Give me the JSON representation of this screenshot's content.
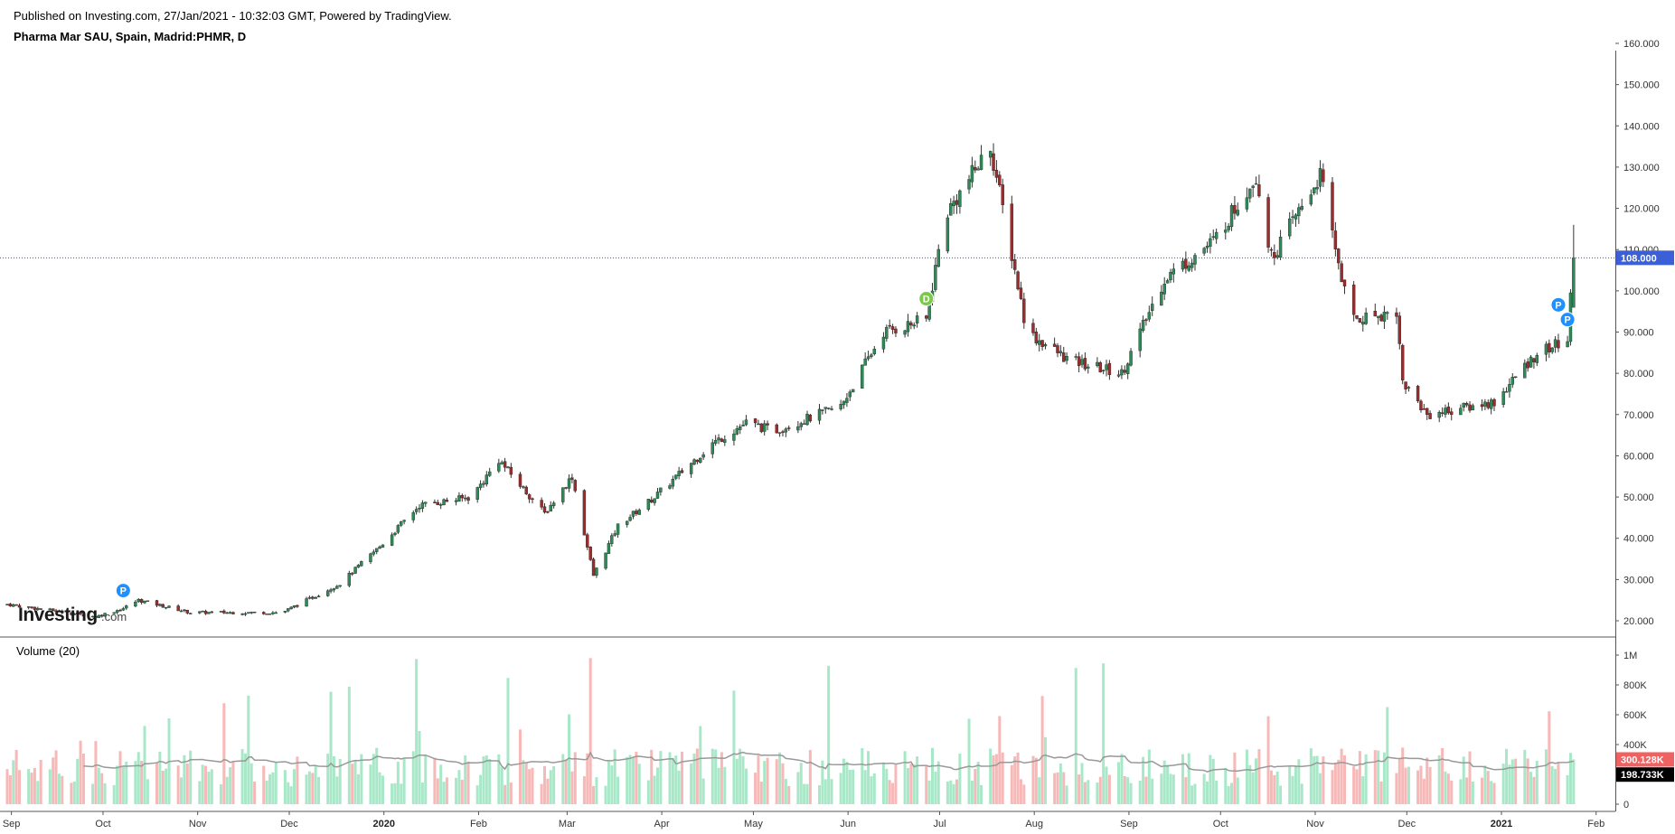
{
  "header": {
    "published": "Published on Investing.com, 27/Jan/2021 - 10:32:03 GMT, Powered by TradingView.",
    "symbol": "Pharma Mar SAU, Spain, Madrid:PHMR, D"
  },
  "logo": {
    "text_main": "Investing",
    "text_suffix": ".com"
  },
  "volume_panel": {
    "label": "Volume (20)"
  },
  "markers": [
    {
      "letter": "P",
      "date": "2019-10-10",
      "color": "#1e90ff"
    },
    {
      "letter": "D",
      "date": "2020-06-29",
      "color": "#7cc94a"
    },
    {
      "letter": "P",
      "date": "2021-01-22",
      "color": "#1e90ff"
    },
    {
      "letter": "P",
      "date": "2021-01-25",
      "color": "#1e90ff"
    }
  ],
  "colors": {
    "up": "#2e8b57",
    "down": "#9b2d2d",
    "volume_up": "#a8e8c8",
    "volume_down": "#f7b8b8",
    "volume_ma": "#999999",
    "last_price_line": "#3355cc",
    "last_price_tag": "#3b5fd6",
    "volume_tag_red": "#f06262",
    "volume_tag_black": "#000000"
  },
  "chart_data": [
    {
      "type": "candlestick",
      "title": "Pharma Mar SAU, Spain, Madrid:PHMR, D",
      "price_axis_ticks": [
        "20.000",
        "30.000",
        "40.000",
        "50.000",
        "60.000",
        "70.000",
        "80.000",
        "90.000",
        "100.000",
        "110.000",
        "120.000",
        "130.000",
        "140.000",
        "150.000",
        "160.000"
      ],
      "ylim": [
        20,
        160
      ],
      "x_axis_ticks": [
        "Sep",
        "Oct",
        "Nov",
        "Dec",
        "2020",
        "Feb",
        "Mar",
        "Apr",
        "May",
        "Jun",
        "Jul",
        "Aug",
        "Sep",
        "Oct",
        "Nov",
        "Dec",
        "2021",
        "Feb"
      ],
      "last_price": "108.000",
      "last_price_value": 108,
      "series_approx_close": [
        {
          "date": "2019-09-02",
          "close": 24
        },
        {
          "date": "2019-10-01",
          "close": 21
        },
        {
          "date": "2019-10-10",
          "close": 23
        },
        {
          "date": "2019-10-15",
          "close": 25
        },
        {
          "date": "2019-11-01",
          "close": 22
        },
        {
          "date": "2019-12-01",
          "close": 22
        },
        {
          "date": "2019-12-20",
          "close": 29
        },
        {
          "date": "2020-01-02",
          "close": 38
        },
        {
          "date": "2020-01-15",
          "close": 48
        },
        {
          "date": "2020-02-01",
          "close": 50
        },
        {
          "date": "2020-02-10",
          "close": 59
        },
        {
          "date": "2020-02-25",
          "close": 46
        },
        {
          "date": "2020-03-05",
          "close": 55
        },
        {
          "date": "2020-03-12",
          "close": 31
        },
        {
          "date": "2020-03-20",
          "close": 43
        },
        {
          "date": "2020-04-01",
          "close": 50
        },
        {
          "date": "2020-04-20",
          "close": 63
        },
        {
          "date": "2020-05-01",
          "close": 68
        },
        {
          "date": "2020-05-10",
          "close": 66
        },
        {
          "date": "2020-06-01",
          "close": 72
        },
        {
          "date": "2020-06-15",
          "close": 90
        },
        {
          "date": "2020-06-29",
          "close": 93
        },
        {
          "date": "2020-07-05",
          "close": 118
        },
        {
          "date": "2020-07-20",
          "close": 135
        },
        {
          "date": "2020-08-01",
          "close": 90
        },
        {
          "date": "2020-08-15",
          "close": 83
        },
        {
          "date": "2020-09-01",
          "close": 80
        },
        {
          "date": "2020-09-15",
          "close": 103
        },
        {
          "date": "2020-10-01",
          "close": 112
        },
        {
          "date": "2020-10-15",
          "close": 128
        },
        {
          "date": "2020-10-20",
          "close": 108
        },
        {
          "date": "2020-11-05",
          "close": 128
        },
        {
          "date": "2020-11-15",
          "close": 93
        },
        {
          "date": "2020-11-30",
          "close": 95
        },
        {
          "date": "2020-12-02",
          "close": 78
        },
        {
          "date": "2020-12-10",
          "close": 70
        },
        {
          "date": "2021-01-01",
          "close": 73
        },
        {
          "date": "2021-01-15",
          "close": 85
        },
        {
          "date": "2021-01-25",
          "close": 88
        },
        {
          "date": "2021-01-27",
          "close": 108
        }
      ]
    },
    {
      "type": "bar",
      "title": "Volume (20)",
      "volume_axis_ticks": [
        "0",
        "200K",
        "400K",
        "600K",
        "800K",
        "1M"
      ],
      "ylim": [
        0,
        1000000
      ],
      "last_volume_tag": "300.128K",
      "ma_tag": "198.733K",
      "ma_period": 20
    }
  ]
}
